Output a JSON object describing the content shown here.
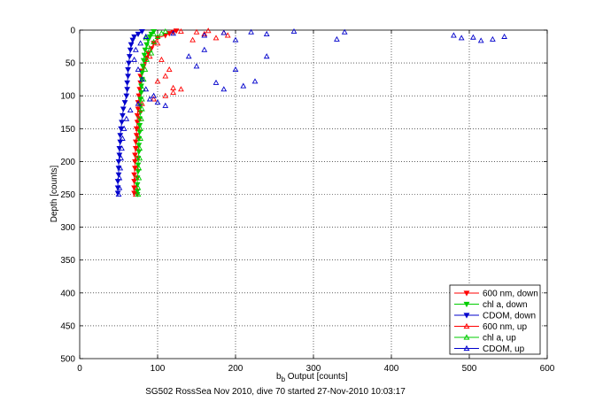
{
  "chart_data": {
    "type": "scatter",
    "title": "",
    "xlabel_main": "b",
    "xlabel_sub": "b",
    "xlabel_rest": " Output [counts]",
    "ylabel": "Depth [counts]",
    "caption": "SG502 RossSea Nov 2010, dive 70 started 27-Nov-2010 10:03:17",
    "xlim": [
      0,
      600
    ],
    "ylim": [
      0,
      500
    ],
    "y_reversed": true,
    "grid": true,
    "legend_position": "bottom-right",
    "x_ticks": [
      "0",
      "100",
      "200",
      "300",
      "400",
      "500",
      "600"
    ],
    "y_ticks": [
      "0",
      "50",
      "100",
      "150",
      "200",
      "250",
      "300",
      "350",
      "400",
      "450",
      "500"
    ],
    "series": [
      {
        "name": "600 nm, down",
        "color": "#ff0000",
        "marker": "triangle-down",
        "points": [
          [
            124,
            1
          ],
          [
            120,
            3
          ],
          [
            115,
            5
          ],
          [
            110,
            8
          ],
          [
            100,
            12
          ],
          [
            95,
            20
          ],
          [
            92,
            28
          ],
          [
            88,
            35
          ],
          [
            86,
            42
          ],
          [
            84,
            48
          ],
          [
            82,
            55
          ],
          [
            80,
            62
          ],
          [
            78,
            70
          ],
          [
            78,
            80
          ],
          [
            77,
            90
          ],
          [
            76,
            100
          ],
          [
            75,
            110
          ],
          [
            75,
            120
          ],
          [
            74,
            130
          ],
          [
            74,
            140
          ],
          [
            73,
            150
          ],
          [
            73,
            160
          ],
          [
            72,
            170
          ],
          [
            72,
            180
          ],
          [
            71,
            190
          ],
          [
            71,
            200
          ],
          [
            71,
            210
          ],
          [
            70,
            220
          ],
          [
            70,
            230
          ],
          [
            70,
            240
          ],
          [
            70,
            248
          ]
        ]
      },
      {
        "name": "chl a, down",
        "color": "#00cc00",
        "marker": "triangle-down",
        "points": [
          [
            95,
            2
          ],
          [
            92,
            6
          ],
          [
            90,
            10
          ],
          [
            88,
            15
          ],
          [
            86,
            22
          ],
          [
            84,
            30
          ],
          [
            83,
            38
          ],
          [
            82,
            46
          ],
          [
            81,
            55
          ],
          [
            80,
            65
          ],
          [
            80,
            75
          ],
          [
            79,
            85
          ],
          [
            79,
            95
          ],
          [
            78,
            105
          ],
          [
            78,
            115
          ],
          [
            78,
            125
          ],
          [
            77,
            135
          ],
          [
            77,
            145
          ],
          [
            77,
            155
          ],
          [
            76,
            165
          ],
          [
            76,
            175
          ],
          [
            76,
            185
          ],
          [
            75,
            195
          ],
          [
            75,
            205
          ],
          [
            75,
            215
          ],
          [
            74,
            225
          ],
          [
            74,
            235
          ],
          [
            74,
            245
          ],
          [
            74,
            250
          ]
        ]
      },
      {
        "name": "CDOM, down",
        "color": "#0000cc",
        "marker": "triangle-down",
        "points": [
          [
            80,
            2
          ],
          [
            75,
            6
          ],
          [
            70,
            10
          ],
          [
            68,
            15
          ],
          [
            66,
            22
          ],
          [
            65,
            30
          ],
          [
            64,
            40
          ],
          [
            63,
            50
          ],
          [
            62,
            60
          ],
          [
            62,
            70
          ],
          [
            61,
            80
          ],
          [
            61,
            90
          ],
          [
            60,
            100
          ],
          [
            58,
            110
          ],
          [
            56,
            120
          ],
          [
            55,
            130
          ],
          [
            54,
            140
          ],
          [
            53,
            150
          ],
          [
            52,
            160
          ],
          [
            52,
            170
          ],
          [
            51,
            180
          ],
          [
            51,
            190
          ],
          [
            50,
            200
          ],
          [
            50,
            210
          ],
          [
            50,
            220
          ],
          [
            49,
            230
          ],
          [
            49,
            240
          ],
          [
            49,
            248
          ]
        ]
      },
      {
        "name": "600 nm, up",
        "color": "#ff0000",
        "marker": "triangle-up",
        "points": [
          [
            72,
            250
          ],
          [
            72,
            240
          ],
          [
            73,
            225
          ],
          [
            73,
            210
          ],
          [
            74,
            195
          ],
          [
            74,
            180
          ],
          [
            75,
            165
          ],
          [
            75,
            150
          ],
          [
            76,
            135
          ],
          [
            77,
            122
          ],
          [
            80,
            112
          ],
          [
            95,
            105
          ],
          [
            110,
            100
          ],
          [
            120,
            95
          ],
          [
            130,
            2
          ],
          [
            150,
            3
          ],
          [
            165,
            1
          ],
          [
            185,
            4
          ],
          [
            190,
            8
          ],
          [
            175,
            12
          ],
          [
            160,
            6
          ],
          [
            145,
            15
          ],
          [
            100,
            20
          ],
          [
            90,
            40
          ],
          [
            105,
            45
          ],
          [
            115,
            60
          ],
          [
            100,
            78
          ],
          [
            130,
            90
          ],
          [
            120,
            88
          ],
          [
            110,
            70
          ]
        ]
      },
      {
        "name": "chl a, up",
        "color": "#00cc00",
        "marker": "triangle-up",
        "points": [
          [
            75,
            250
          ],
          [
            75,
            240
          ],
          [
            76,
            225
          ],
          [
            76,
            210
          ],
          [
            77,
            195
          ],
          [
            77,
            180
          ],
          [
            78,
            165
          ],
          [
            78,
            150
          ],
          [
            79,
            135
          ],
          [
            80,
            120
          ],
          [
            80,
            105
          ],
          [
            81,
            90
          ],
          [
            82,
            75
          ],
          [
            84,
            60
          ],
          [
            86,
            45
          ],
          [
            90,
            30
          ],
          [
            95,
            18
          ],
          [
            100,
            10
          ],
          [
            105,
            5
          ],
          [
            110,
            2
          ],
          [
            95,
            6
          ],
          [
            85,
            12
          ],
          [
            88,
            25
          ],
          [
            92,
            35
          ]
        ]
      },
      {
        "name": "CDOM, up",
        "color": "#0000cc",
        "marker": "triangle-up",
        "points": [
          [
            50,
            250
          ],
          [
            51,
            240
          ],
          [
            51,
            225
          ],
          [
            52,
            210
          ],
          [
            53,
            195
          ],
          [
            54,
            180
          ],
          [
            55,
            165
          ],
          [
            57,
            150
          ],
          [
            60,
            135
          ],
          [
            65,
            122
          ],
          [
            75,
            112
          ],
          [
            90,
            105
          ],
          [
            100,
            110
          ],
          [
            110,
            115
          ],
          [
            95,
            100
          ],
          [
            85,
            90
          ],
          [
            80,
            75
          ],
          [
            75,
            60
          ],
          [
            70,
            45
          ],
          [
            72,
            30
          ],
          [
            78,
            20
          ],
          [
            85,
            10
          ],
          [
            120,
            5
          ],
          [
            160,
            8
          ],
          [
            185,
            4
          ],
          [
            200,
            15
          ],
          [
            220,
            3
          ],
          [
            240,
            6
          ],
          [
            275,
            2
          ],
          [
            340,
            3
          ],
          [
            330,
            14
          ],
          [
            480,
            8
          ],
          [
            490,
            12
          ],
          [
            505,
            11
          ],
          [
            515,
            16
          ],
          [
            530,
            14
          ],
          [
            545,
            10
          ],
          [
            240,
            40
          ],
          [
            200,
            60
          ],
          [
            185,
            90
          ],
          [
            210,
            85
          ],
          [
            225,
            78
          ],
          [
            175,
            80
          ],
          [
            150,
            55
          ],
          [
            140,
            40
          ],
          [
            160,
            30
          ]
        ]
      }
    ]
  }
}
